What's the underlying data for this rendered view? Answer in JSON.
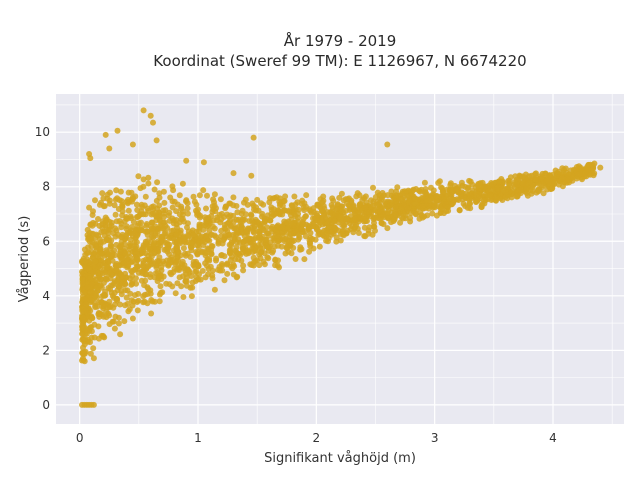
{
  "chart_data": {
    "type": "scatter",
    "title_line1": "År 1979 - 2019",
    "title_line2": "Koordinat (Sweref 99 TM): E 1126967, N 6674220",
    "xlabel": "Signifikant våghöjd (m)",
    "ylabel": "Vågperiod (s)",
    "xlim": [
      -0.2,
      4.6
    ],
    "ylim": [
      -0.7,
      11.4
    ],
    "x_ticks": [
      0,
      1,
      2,
      3,
      4
    ],
    "y_ticks": [
      0,
      2,
      4,
      6,
      8,
      10
    ],
    "grid": true,
    "point_color": "#d4a520",
    "background_color": "#e9e9f1",
    "cloud_summary": {
      "n_points_rendered": 2600,
      "description": "dense cloud of measurements; periods rise with height",
      "lower_envelope": [
        [
          0.02,
          1.1
        ],
        [
          0.1,
          1.4
        ],
        [
          0.3,
          2.4
        ],
        [
          0.6,
          3.3
        ],
        [
          1.0,
          4.0
        ],
        [
          1.5,
          4.7
        ],
        [
          2.0,
          5.5
        ],
        [
          2.5,
          6.2
        ],
        [
          3.0,
          6.8
        ],
        [
          3.5,
          7.3
        ],
        [
          4.0,
          7.8
        ],
        [
          4.35,
          8.4
        ]
      ],
      "upper_envelope": [
        [
          0.02,
          5.5
        ],
        [
          0.1,
          8.0
        ],
        [
          0.3,
          8.4
        ],
        [
          0.6,
          8.5
        ],
        [
          1.0,
          8.0
        ],
        [
          1.5,
          7.8
        ],
        [
          2.0,
          7.8
        ],
        [
          2.5,
          8.0
        ],
        [
          3.0,
          8.2
        ],
        [
          3.5,
          8.4
        ],
        [
          4.0,
          8.7
        ],
        [
          4.35,
          8.9
        ]
      ]
    },
    "outliers": [
      [
        0.54,
        10.8
      ],
      [
        0.6,
        10.6
      ],
      [
        0.62,
        10.35
      ],
      [
        0.32,
        10.05
      ],
      [
        0.22,
        9.9
      ],
      [
        0.45,
        9.55
      ],
      [
        0.65,
        9.7
      ],
      [
        1.47,
        9.8
      ],
      [
        2.6,
        9.55
      ],
      [
        0.08,
        9.2
      ],
      [
        0.09,
        9.05
      ],
      [
        0.25,
        9.4
      ],
      [
        0.9,
        8.95
      ],
      [
        1.05,
        8.9
      ],
      [
        1.3,
        8.5
      ],
      [
        1.45,
        8.4
      ],
      [
        3.55,
        8.2
      ],
      [
        3.6,
        7.8
      ],
      [
        3.8,
        8.15
      ],
      [
        3.9,
        8.3
      ],
      [
        4.05,
        8.55
      ],
      [
        4.15,
        8.6
      ],
      [
        4.22,
        8.75
      ],
      [
        4.3,
        8.8
      ],
      [
        4.35,
        8.85
      ],
      [
        4.4,
        8.7
      ],
      [
        4.2,
        8.3
      ],
      [
        3.95,
        7.9
      ]
    ],
    "zero_period_points": [
      [
        0.02,
        0
      ],
      [
        0.04,
        0
      ],
      [
        0.06,
        0
      ],
      [
        0.08,
        0
      ],
      [
        0.1,
        0
      ],
      [
        0.12,
        0
      ]
    ]
  }
}
